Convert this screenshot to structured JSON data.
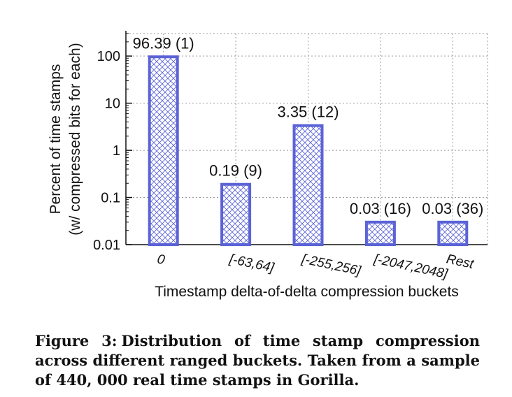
{
  "chart_data": {
    "type": "bar",
    "y_scale": "log",
    "ylim": [
      0.01,
      300
    ],
    "yticks": [
      {
        "value": 0.01,
        "label": "0.01"
      },
      {
        "value": 0.1,
        "label": "0.1"
      },
      {
        "value": 1,
        "label": "1"
      },
      {
        "value": 10,
        "label": "10"
      },
      {
        "value": 100,
        "label": "100"
      }
    ],
    "grid": true,
    "categories": [
      "0",
      "[-63,64]",
      "[-255,256]",
      "[-2047,2048]",
      "Rest"
    ],
    "values": [
      96.39,
      0.19,
      3.35,
      0.03,
      0.03
    ],
    "data_labels": [
      "96.39 (1)",
      "0.19 (9)",
      "3.35 (12)",
      "0.03 (16)",
      "0.03 (36)"
    ],
    "xlabel": "Timestamp delta-of-delta compression buckets",
    "ylabel": [
      "Percent of time stamps",
      "(w/ compressed bits for each)"
    ],
    "bar_color": "#5b63d6",
    "bar_fill": "crosshatch"
  },
  "caption": {
    "label": "Figure 3:",
    "text": "Distribution of time stamp compression across different ranged buckets. Taken from a sample of 440, 000 real time stamps in Gorilla."
  }
}
